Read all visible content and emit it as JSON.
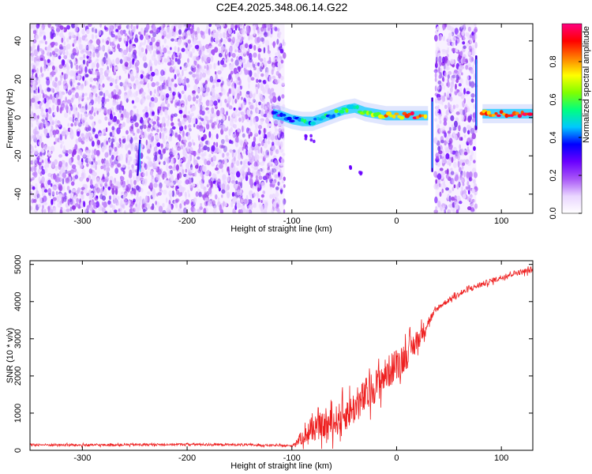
{
  "title": "C2E4.2025.348.06.14.G22",
  "chart_data": [
    {
      "type": "heatmap",
      "title": "C2E4.2025.348.06.14.G22",
      "xlabel": "Height of straight line (km)",
      "ylabel": "Frequency (Hz)",
      "xlim": [
        -350,
        130
      ],
      "ylim": [
        -50,
        49
      ],
      "xticks": [
        -300,
        -200,
        -100,
        0,
        100
      ],
      "xtick_labels": [
        "-300",
        "-200",
        "-100",
        "0",
        "100"
      ],
      "yticks": [
        -40,
        -20,
        0,
        20,
        40
      ],
      "ytick_labels": [
        "-40",
        "-20",
        "0",
        "20",
        "40"
      ],
      "colorbar": {
        "label": "Normalized spectral amplitude",
        "range": [
          0.0,
          1.0
        ],
        "ticks": [
          0.0,
          0.2,
          0.4,
          0.6,
          0.8
        ],
        "tick_labels": [
          "0.0",
          "0.2",
          "0.4",
          "0.6",
          "0.8"
        ],
        "colors": [
          "#ffffff",
          "#e9d5ff",
          "#a855f7",
          "#6a00ff",
          "#0000ff",
          "#00c8ff",
          "#00ff80",
          "#80ff00",
          "#ffff00",
          "#ff8000",
          "#ff0000",
          "#ff0080"
        ]
      },
      "noise_regions": [
        {
          "x_range": [
            -350,
            -107
          ],
          "y_range": [
            -50,
            49
          ],
          "level": 0.15
        },
        {
          "x_range": [
            37,
            76
          ],
          "y_range": [
            -50,
            49
          ],
          "level": 0.15
        }
      ],
      "signal_trace": [
        {
          "x": -118,
          "y": 2,
          "v": 0.3
        },
        {
          "x": -110,
          "y": 1,
          "v": 0.35
        },
        {
          "x": -100,
          "y": -1,
          "v": 0.4
        },
        {
          "x": -90,
          "y": -2,
          "v": 0.45
        },
        {
          "x": -80,
          "y": -2,
          "v": 0.45
        },
        {
          "x": -70,
          "y": 0,
          "v": 0.5
        },
        {
          "x": -60,
          "y": 2,
          "v": 0.5
        },
        {
          "x": -50,
          "y": 4,
          "v": 0.55
        },
        {
          "x": -40,
          "y": 5,
          "v": 0.55
        },
        {
          "x": -30,
          "y": 3,
          "v": 0.6
        },
        {
          "x": -20,
          "y": 2,
          "v": 0.7
        },
        {
          "x": -10,
          "y": 1,
          "v": 0.75
        },
        {
          "x": 0,
          "y": 1,
          "v": 0.8
        },
        {
          "x": 10,
          "y": 1,
          "v": 0.85
        },
        {
          "x": 20,
          "y": 1,
          "v": 0.85
        },
        {
          "x": 30,
          "y": 1,
          "v": 0.8
        },
        {
          "x": 82,
          "y": 2,
          "v": 0.8
        },
        {
          "x": 90,
          "y": 2,
          "v": 0.85
        },
        {
          "x": 100,
          "y": 2,
          "v": 0.85
        },
        {
          "x": 110,
          "y": 2,
          "v": 0.9
        },
        {
          "x": 120,
          "y": 2,
          "v": 0.95
        },
        {
          "x": 130,
          "y": 2,
          "v": 0.95
        }
      ],
      "secondary_trace": [
        {
          "x": -88,
          "y": -10
        },
        {
          "x": -80,
          "y": -11
        },
        {
          "x": -45,
          "y": -25
        },
        {
          "x": -35,
          "y": -30
        }
      ],
      "spike_features": [
        {
          "x": -245,
          "y_range": [
            -30,
            -12
          ]
        },
        {
          "x": 34,
          "y_range": [
            -28,
            10
          ]
        },
        {
          "x": 76,
          "y_range": [
            -6,
            32
          ]
        }
      ]
    },
    {
      "type": "line",
      "xlabel": "Height of straight line (km)",
      "ylabel": "SNR (10 * v/v)",
      "xlim": [
        -350,
        130
      ],
      "ylim": [
        0,
        5100
      ],
      "xticks": [
        -300,
        -200,
        -100,
        0,
        100
      ],
      "xtick_labels": [
        "-300",
        "-200",
        "-100",
        "0",
        "100"
      ],
      "yticks": [
        0,
        1000,
        2000,
        3000,
        4000,
        5000
      ],
      "ytick_labels": [
        "0",
        "1000",
        "2000",
        "3000",
        "4000",
        "5000"
      ],
      "line_color": "#ee2020",
      "series": [
        {
          "x": [
            -350,
            -300,
            -250,
            -200,
            -150,
            -100,
            -90,
            -80,
            -70,
            -60,
            -50,
            -40,
            -30,
            -20,
            -10,
            0,
            10,
            20,
            30,
            40,
            50,
            60,
            70,
            80,
            90,
            100,
            110,
            120,
            130
          ],
          "values": [
            150,
            140,
            150,
            160,
            150,
            120,
            350,
            550,
            650,
            750,
            950,
            1150,
            1450,
            1750,
            2050,
            2300,
            2600,
            2950,
            3450,
            3850,
            4050,
            4200,
            4350,
            4450,
            4550,
            4650,
            4750,
            4800,
            4850
          ],
          "spread": [
            60,
            60,
            60,
            60,
            60,
            50,
            400,
            600,
            700,
            800,
            900,
            900,
            1000,
            900,
            900,
            900,
            800,
            600,
            300,
            150,
            150,
            150,
            150,
            150,
            150,
            150,
            150,
            150,
            150
          ]
        }
      ]
    }
  ]
}
